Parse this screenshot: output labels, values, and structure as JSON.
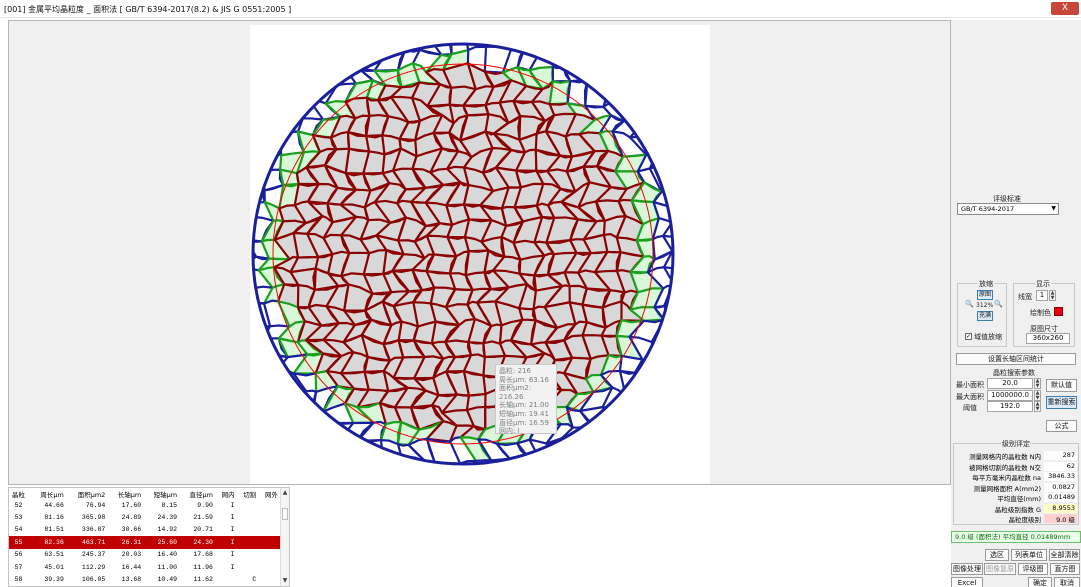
{
  "window": {
    "title": "[001] 金属平均晶粒度 _ 面积法 [ GB/T 6394-2017(8.2) & JIS G 0551:2005 ]",
    "close_label": "X"
  },
  "tooltip": {
    "lines": [
      "晶粒: 216",
      "周长μm: 63.16",
      "面积μm2: 216.26",
      "长轴μm: 21.00",
      "短轴μm: 19.41",
      "直径μm: 16.59",
      "网内: I"
    ]
  },
  "table": {
    "headers": [
      "晶粒",
      "周长μm",
      "面积μm2",
      "长轴μm",
      "短轴μm",
      "直径μm",
      "网内",
      "切割",
      "网外"
    ],
    "rows": [
      [
        "52",
        "44.66",
        "76.94",
        "17.60",
        "8.15",
        "9.90",
        "I",
        "",
        ""
      ],
      [
        "53",
        "81.16",
        "365.98",
        "24.89",
        "24.39",
        "21.59",
        "I",
        "",
        ""
      ],
      [
        "54",
        "81.51",
        "336.87",
        "30.66",
        "14.92",
        "20.71",
        "I",
        "",
        ""
      ],
      [
        "55",
        "82.36",
        "463.71",
        "26.31",
        "25.60",
        "24.30",
        "I",
        "",
        ""
      ],
      [
        "56",
        "63.51",
        "245.37",
        "20.03",
        "16.40",
        "17.68",
        "I",
        "",
        ""
      ],
      [
        "57",
        "45.01",
        "112.29",
        "16.44",
        "11.00",
        "11.96",
        "I",
        "",
        ""
      ],
      [
        "58",
        "39.39",
        "106.05",
        "13.68",
        "10.49",
        "11.62",
        "",
        "C",
        ""
      ]
    ],
    "selected_index": 3
  },
  "panel": {
    "standard_label": "评级标准",
    "standard_value": "GB/T 6394-2017",
    "zoom_label": "放缩",
    "display_label": "显示",
    "original_btn": "原图",
    "zoom_pct": "312%",
    "fill_btn": "充满",
    "line_width_label": "线宽",
    "line_width_value": "1",
    "draw_color_label": "绘制色",
    "sync_zoom_label": "域值放缩",
    "orig_size_label": "原图尺寸",
    "orig_size_value": "360x260",
    "long_axis_btn": "设置长轴区间统计",
    "search_params_label": "晶粒搜索参数",
    "min_area_label": "最小面积",
    "min_area_value": "20.0",
    "max_area_label": "最大面积",
    "max_area_value": "1000000.0",
    "threshold_label": "阈值",
    "threshold_value": "192.0",
    "default_btn": "默认值",
    "research_btn": "重新搜索",
    "formula_btn": "公式",
    "grade_title": "级别评定",
    "grade_rows": [
      {
        "k": "测量网格内的晶粒数 N内",
        "v": "287"
      },
      {
        "k": "被网格切割的晶粒数 N交",
        "v": "62"
      },
      {
        "k": "每平方毫米内晶粒数 na",
        "v": "3846.33"
      },
      {
        "k": "测量网格面积 A(mm2)",
        "v": "0.0827"
      },
      {
        "k": "平均直径(mm)",
        "v": "0.01489"
      },
      {
        "k": "晶粒级别指数 G",
        "v": "8.9553"
      },
      {
        "k": "晶粒度级别",
        "v": "9.0 级"
      }
    ],
    "result_text": "9.0 级 (面积法) 平均直径 0.01489mm",
    "select_area_btn": "选区",
    "list_unit_btn": "列表单位",
    "clear_all_btn": "全部清除",
    "image_process_btn": "图像处理",
    "image_restore_btn": "图像复原",
    "grade_chart_btn": "评级图",
    "histogram_btn": "直方图",
    "excel_btn": "Excel",
    "ok_btn": "确定",
    "cancel_btn": "取消"
  },
  "colors": {
    "grain_fill": "#d8d8d8",
    "inside_boundary": "#8b0000",
    "cut_boundary": "#19a11c",
    "outside_boundary": "#1a1f9c",
    "circle": "#ff0000",
    "selected_row": "#c00000"
  }
}
